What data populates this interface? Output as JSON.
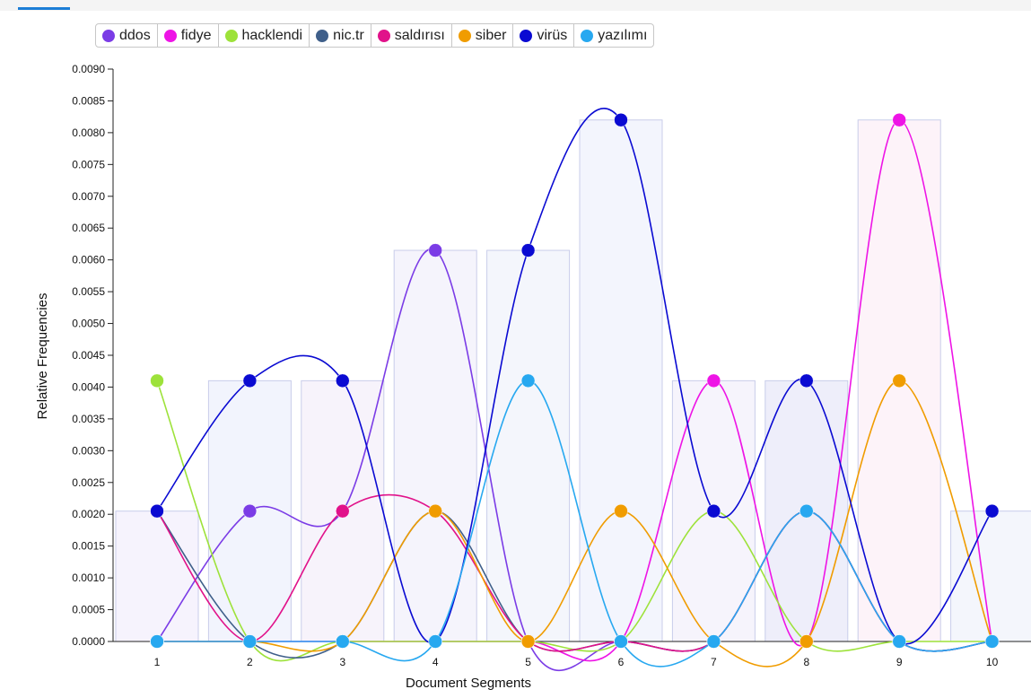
{
  "chart_data": {
    "type": "line",
    "xlabel": "Document Segments",
    "ylabel": "Relative Frequencies",
    "x": [
      1,
      2,
      3,
      4,
      5,
      6,
      7,
      8,
      9,
      10
    ],
    "x_tick_labels": [
      "1",
      "2",
      "3",
      "4",
      "5",
      "6",
      "7",
      "8",
      "9",
      "10"
    ],
    "ylim": [
      0,
      0.009
    ],
    "y_tick_labels": [
      "0.0000",
      "0.0005",
      "0.0010",
      "0.0015",
      "0.0020",
      "0.0025",
      "0.0030",
      "0.0035",
      "0.0040",
      "0.0045",
      "0.0050",
      "0.0055",
      "0.0060",
      "0.0065",
      "0.0070",
      "0.0075",
      "0.0080",
      "0.0085",
      "0.0090"
    ],
    "legend_position": "top",
    "bars": [
      0.00205,
      0.0041,
      0.0041,
      0.00615,
      0.00615,
      0.0082,
      0.0041,
      0.0041,
      0.0082,
      0.00205
    ],
    "series": [
      {
        "name": "ddos",
        "color": "#7b3ce6",
        "values": [
          0,
          0.00205,
          0.00205,
          0.00615,
          0,
          0,
          0,
          0.00205,
          0,
          0
        ]
      },
      {
        "name": "fidye",
        "color": "#ee14e6",
        "values": [
          0,
          0,
          0,
          0,
          0,
          0,
          0.0041,
          0,
          0.0082,
          0
        ]
      },
      {
        "name": "hacklendi",
        "color": "#9de23a",
        "values": [
          0.0041,
          0,
          0,
          0,
          0,
          0,
          0.00205,
          0,
          0,
          0
        ]
      },
      {
        "name": "nic.tr",
        "color": "#3f5f8a",
        "values": [
          0.00205,
          0,
          0,
          0.00205,
          0,
          0,
          0,
          0.00205,
          0,
          0
        ]
      },
      {
        "name": "saldırısı",
        "color": "#e1128a",
        "values": [
          0.00205,
          0,
          0.00205,
          0.00205,
          0,
          0,
          0,
          0.00205,
          0,
          0
        ]
      },
      {
        "name": "siber",
        "color": "#f09c00",
        "values": [
          0,
          0,
          0,
          0.00205,
          0,
          0.00205,
          0,
          0,
          0.0041,
          0
        ]
      },
      {
        "name": "virüs",
        "color": "#0a0ad2",
        "values": [
          0.00205,
          0.0041,
          0.0041,
          0,
          0.00615,
          0.0082,
          0.00205,
          0.0041,
          0,
          0.00205
        ]
      },
      {
        "name": "yazılımı",
        "color": "#27a8f0",
        "values": [
          0,
          0,
          0,
          0,
          0.0041,
          0,
          0,
          0.00205,
          0,
          0
        ]
      }
    ]
  }
}
